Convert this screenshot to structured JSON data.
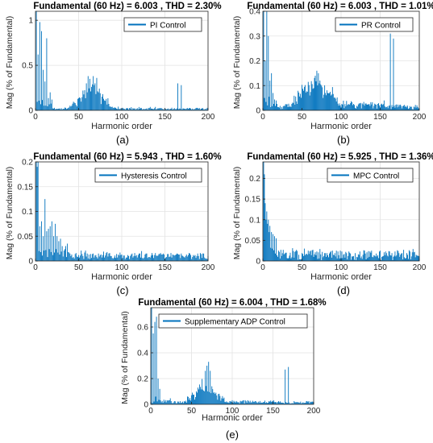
{
  "colors": {
    "series": "#0072BD",
    "axis": "#262626",
    "grid": "#e3e3e3"
  },
  "chart_data": [
    {
      "panel_label": "(a)",
      "type": "bar",
      "title": "Fundamental (60 Hz) = 6.003 , THD = 2.30%",
      "xlabel": "Harmonic order",
      "ylabel": "Mag (% of Fundamental)",
      "xlim": [
        0,
        200
      ],
      "ylim": [
        0,
        1.1
      ],
      "xticks": [
        "0",
        "50",
        "100",
        "150",
        "200"
      ],
      "yticks": [
        "0",
        "0.5",
        "1"
      ],
      "grid": true,
      "legend_position": "top-right",
      "series": [
        {
          "name": "PI Control",
          "x": [],
          "values": []
        }
      ]
    },
    {
      "panel_label": "(b)",
      "type": "bar",
      "title": "Fundamental (60 Hz) = 6.003 , THD = 1.01%",
      "xlabel": "Harmonic order",
      "ylabel": "Mag (% of Fundamental)",
      "xlim": [
        0,
        200
      ],
      "ylim": [
        0,
        0.4
      ],
      "xticks": [
        "0",
        "50",
        "100",
        "150",
        "200"
      ],
      "yticks": [
        "0",
        "0.1",
        "0.2",
        "0.3",
        "0.4"
      ],
      "grid": true,
      "legend_position": "top-right",
      "series": [
        {
          "name": "PR Control",
          "x": [],
          "values": []
        }
      ]
    },
    {
      "panel_label": "(c)",
      "type": "bar",
      "title": "Fundamental (60 Hz) = 5.943 , THD = 1.60%",
      "xlabel": "Harmonic order",
      "ylabel": "Mag (% of Fundamental)",
      "xlim": [
        0,
        200
      ],
      "ylim": [
        0,
        0.2
      ],
      "xticks": [
        "0",
        "50",
        "100",
        "150",
        "200"
      ],
      "yticks": [
        "0",
        "0.05",
        "0.1",
        "0.15",
        "0.2"
      ],
      "grid": true,
      "legend_position": "top-right",
      "series": [
        {
          "name": "Hysteresis Control",
          "x": [],
          "values": []
        }
      ]
    },
    {
      "panel_label": "(d)",
      "type": "bar",
      "title": "Fundamental (60 Hz) = 5.925 , THD = 1.36%",
      "xlabel": "Harmonic order",
      "ylabel": "Mag (% of Fundamental)",
      "xlim": [
        0,
        200
      ],
      "ylim": [
        0,
        0.24
      ],
      "xticks": [
        "0",
        "50",
        "100",
        "150",
        "200"
      ],
      "yticks": [
        "0",
        "0.05",
        "0.1",
        "0.15",
        "0.2"
      ],
      "grid": true,
      "legend_position": "top-right",
      "series": [
        {
          "name": "MPC Control",
          "x": [],
          "values": []
        }
      ]
    },
    {
      "panel_label": "(e)",
      "type": "bar",
      "title": "Fundamental (60 Hz) = 6.004 , THD = 1.68%",
      "xlabel": "Harmonic order",
      "ylabel": "Mag (% of Fundamental)",
      "xlim": [
        0,
        200
      ],
      "ylim": [
        0,
        0.75
      ],
      "xticks": [
        "0",
        "50",
        "100",
        "150",
        "200"
      ],
      "yticks": [
        "0",
        "0.2",
        "0.4",
        "0.6"
      ],
      "grid": true,
      "legend_position": "top-right",
      "series": [
        {
          "name": "Supplementary ADP Control",
          "x": [],
          "values": []
        }
      ]
    }
  ]
}
